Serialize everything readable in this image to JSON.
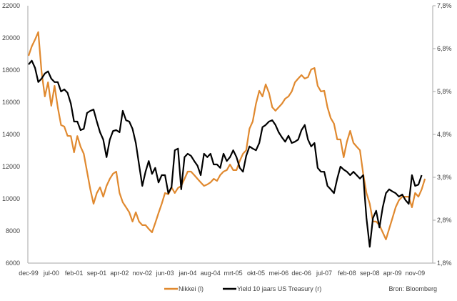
{
  "chart_data": {
    "type": "line",
    "title": "",
    "source": "Bron: Bloomberg",
    "x_unit": "month index from dec-99",
    "x_tick_labels": [
      "dec-99",
      "jul-00",
      "feb-01",
      "sep-01",
      "apr-02",
      "nov-02",
      "jun-03",
      "jan-04",
      "aug-04",
      "mrt-05",
      "okt-05",
      "mei-06",
      "dec-06",
      "jul-07",
      "feb-08",
      "sep-08",
      "apr-09",
      "nov-09"
    ],
    "x_tick_step_months": 7,
    "y_left": {
      "min": 6000,
      "max": 22000,
      "step": 2000,
      "ticks": [
        "6000",
        "8000",
        "10000",
        "12000",
        "14000",
        "16000",
        "18000",
        "20000",
        "22000"
      ]
    },
    "y_right": {
      "min": 1.8,
      "max": 7.8,
      "step": 1,
      "ticks": [
        "1,8%",
        "2,8%",
        "3,8%",
        "4,8%",
        "5,8%",
        "6,8%",
        "7,8%"
      ]
    },
    "grid": false,
    "legend_position": "bottom",
    "series": [
      {
        "name": "Nikkei (l)",
        "axis": "left",
        "color": "#E0892F",
        "values": [
          18889,
          19470,
          19900,
          20360,
          17900,
          16360,
          17240,
          15780,
          17020,
          15690,
          14580,
          14490,
          13910,
          13900,
          12890,
          13900,
          13240,
          12800,
          11690,
          10580,
          9690,
          10360,
          10710,
          10130,
          10800,
          11240,
          11560,
          11690,
          10360,
          9780,
          9470,
          9160,
          8580,
          9160,
          8580,
          8360,
          8360,
          8130,
          7910,
          8490,
          9110,
          9690,
          10360,
          10270,
          10710,
          10360,
          10670,
          10800,
          11240,
          11690,
          11690,
          11470,
          11240,
          11020,
          10800,
          10890,
          11020,
          11240,
          11110,
          11470,
          11690,
          11780,
          12130,
          11780,
          11780,
          12360,
          12800,
          13020,
          14360,
          14800,
          15910,
          16710,
          16360,
          17110,
          16580,
          15690,
          15470,
          15690,
          15910,
          16220,
          16360,
          16670,
          17240,
          17470,
          17690,
          17470,
          17560,
          18040,
          18130,
          17020,
          16670,
          16710,
          15690,
          15020,
          14670,
          13690,
          13690,
          12580,
          13560,
          14220,
          13470,
          13240,
          13020,
          11560,
          10360,
          9690,
          8580,
          8580,
          8360,
          7910,
          7470,
          8130,
          8800,
          9470,
          9910,
          10130,
          10130,
          10130,
          9470,
          10360,
          10130,
          10580,
          11240
        ]
      },
      {
        "name": "Yield 10 jaars US Treasury (r)",
        "axis": "right",
        "color": "#000000",
        "values": [
          6.43,
          6.52,
          6.35,
          6.02,
          6.1,
          6.22,
          6.27,
          6.1,
          6.02,
          6.02,
          5.8,
          5.85,
          5.77,
          5.52,
          5.1,
          5.1,
          4.9,
          4.93,
          5.3,
          5.35,
          5.38,
          5.1,
          4.85,
          4.68,
          4.27,
          4.68,
          4.88,
          4.9,
          4.85,
          5.35,
          5.13,
          5.1,
          4.93,
          4.6,
          4.1,
          3.6,
          3.93,
          4.18,
          3.88,
          4.02,
          3.68,
          3.85,
          3.85,
          3.43,
          3.57,
          4.43,
          4.47,
          3.52,
          4.27,
          4.35,
          4.3,
          4.18,
          4.07,
          3.85,
          4.35,
          4.27,
          4.35,
          4.1,
          4.1,
          4.02,
          4.35,
          4.18,
          4.27,
          4.43,
          4.27,
          4.02,
          3.93,
          4.3,
          4.52,
          4.47,
          4.43,
          4.6,
          4.97,
          5.02,
          5.1,
          5.13,
          5.02,
          4.85,
          4.73,
          4.63,
          4.77,
          4.6,
          4.63,
          4.68,
          4.9,
          5.02,
          4.68,
          4.52,
          4.6,
          4.02,
          3.93,
          3.93,
          3.6,
          3.52,
          3.43,
          3.77,
          4.05,
          3.98,
          3.93,
          3.85,
          3.93,
          3.85,
          3.77,
          3.85,
          2.85,
          2.18,
          2.85,
          3.02,
          2.63,
          3.1,
          3.43,
          3.52,
          3.47,
          3.43,
          3.35,
          3.4,
          3.27,
          3.18,
          3.85,
          3.6,
          3.63,
          3.85
        ]
      }
    ]
  }
}
